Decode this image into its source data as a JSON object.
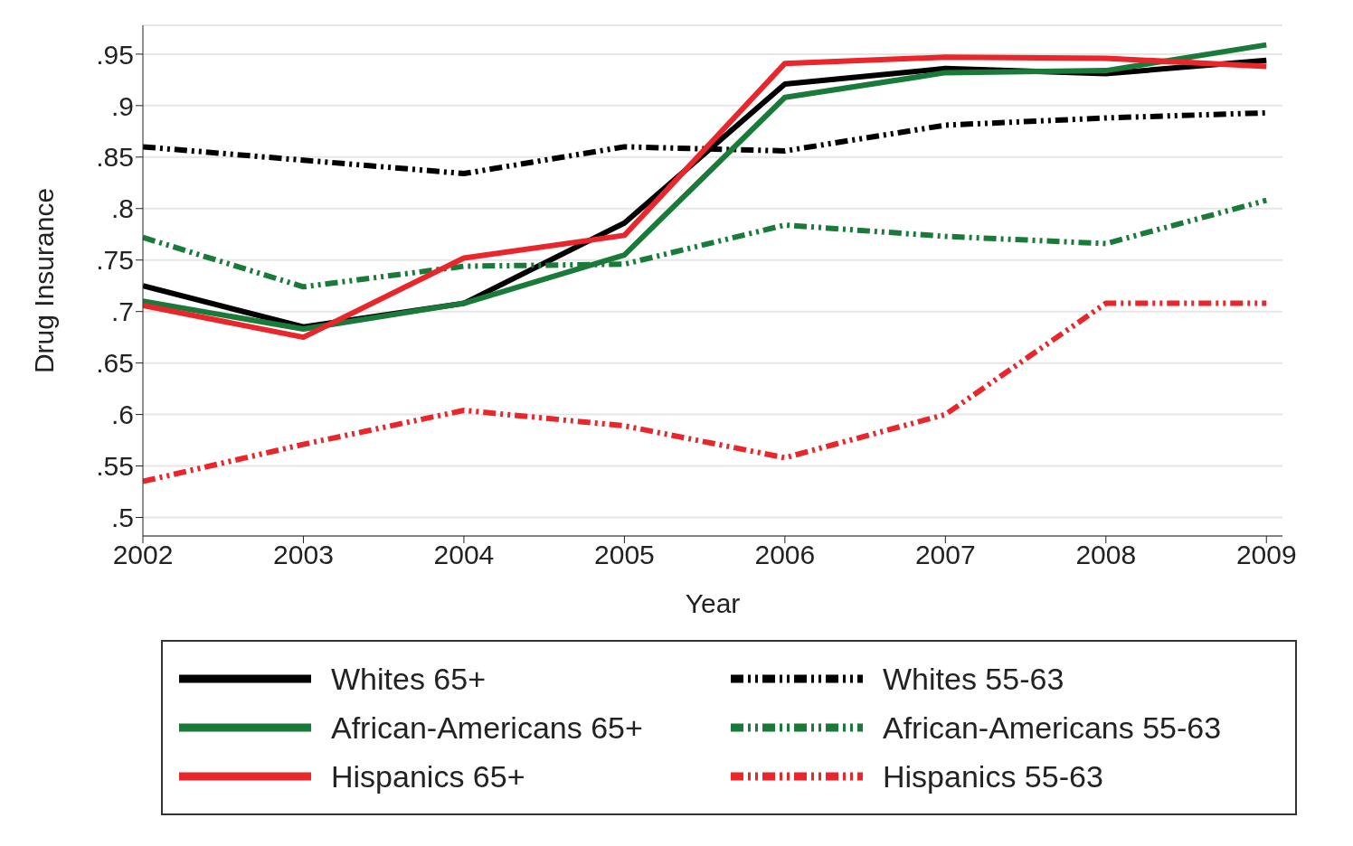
{
  "chart_data": {
    "type": "line",
    "xlabel": "Year",
    "ylabel": "Drug Insurance",
    "x": [
      2002,
      2003,
      2004,
      2005,
      2006,
      2007,
      2008,
      2009
    ],
    "xlim": [
      2002,
      2009.1
    ],
    "xticks": [
      2002,
      2003,
      2004,
      2005,
      2006,
      2007,
      2008,
      2009
    ],
    "ylim": [
      0.482,
      0.978
    ],
    "yticks": [
      {
        "value": 0.5,
        "label": ".5"
      },
      {
        "value": 0.55,
        "label": ".55"
      },
      {
        "value": 0.6,
        "label": ".6"
      },
      {
        "value": 0.65,
        "label": ".65"
      },
      {
        "value": 0.7,
        "label": ".7"
      },
      {
        "value": 0.75,
        "label": ".75"
      },
      {
        "value": 0.8,
        "label": ".8"
      },
      {
        "value": 0.85,
        "label": ".85"
      },
      {
        "value": 0.9,
        "label": ".9"
      },
      {
        "value": 0.95,
        "label": ".95"
      }
    ],
    "grid": "y",
    "legend": "bottom",
    "marker": "none",
    "series": [
      {
        "name": "Whites 65+",
        "color": "#000000",
        "line_style": "solid",
        "values": [
          0.725,
          0.685,
          0.708,
          0.786,
          0.921,
          0.936,
          0.931,
          0.944
        ]
      },
      {
        "name": "Whites 55-63",
        "color": "#000000",
        "line_style": "dashed",
        "values": [
          0.86,
          0.847,
          0.834,
          0.86,
          0.856,
          0.881,
          0.888,
          0.893
        ]
      },
      {
        "name": "African-Americans 65+",
        "color": "#1a7a3a",
        "line_style": "solid",
        "values": [
          0.71,
          0.683,
          0.708,
          0.755,
          0.908,
          0.932,
          0.934,
          0.959
        ]
      },
      {
        "name": "African-Americans 55-63",
        "color": "#1a7a3a",
        "line_style": "dashed",
        "values": [
          0.772,
          0.724,
          0.744,
          0.746,
          0.784,
          0.773,
          0.766,
          0.808
        ]
      },
      {
        "name": "Hispanics 65+",
        "color": "#e8262b",
        "line_style": "solid",
        "values": [
          0.706,
          0.675,
          0.752,
          0.774,
          0.941,
          0.947,
          0.946,
          0.938
        ]
      },
      {
        "name": "Hispanics 55-63",
        "color": "#e8262b",
        "line_style": "dashed",
        "values": [
          0.535,
          0.571,
          0.604,
          0.589,
          0.558,
          0.6,
          0.708,
          0.708
        ]
      }
    ]
  }
}
